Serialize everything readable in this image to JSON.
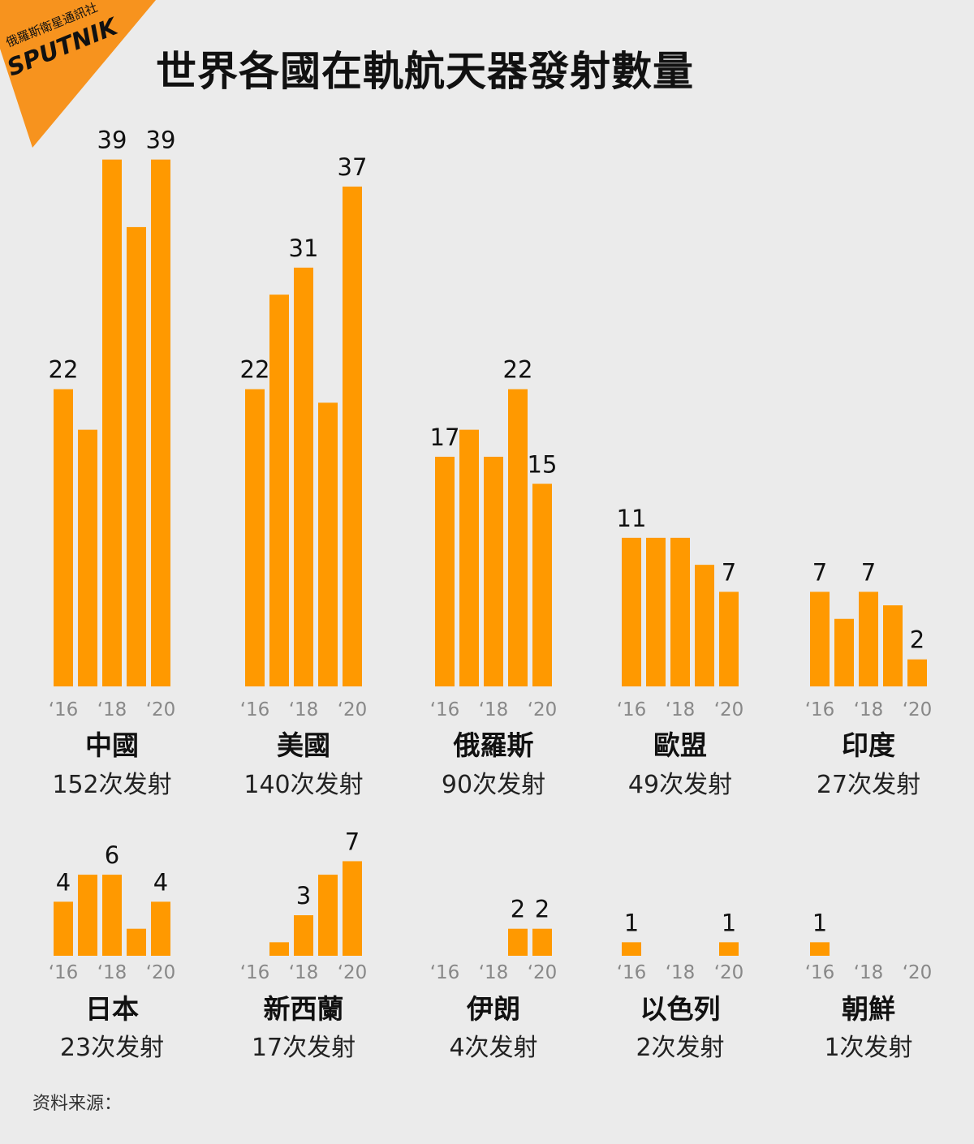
{
  "title": "世界各國在軌航天器發射數量",
  "source_label": "资料来源：",
  "logo": {
    "agency": "俄羅斯衛星通訊社",
    "brand": "SPUTNIK",
    "color": "#f7931e"
  },
  "colors": {
    "bar": "#ff9900",
    "axis_text": "#888888",
    "value_text": "#111111"
  },
  "chart_data": {
    "type": "bar",
    "categories": [
      "2016",
      "2017",
      "2018",
      "2019",
      "2020"
    ],
    "tick_labels": [
      "‘16",
      "‘18",
      "‘20"
    ],
    "countries": [
      {
        "name": "中國",
        "total": "152次发射",
        "values": [
          22,
          19,
          39,
          34,
          39
        ],
        "labels": [
          "22",
          "",
          "39",
          "",
          "39"
        ]
      },
      {
        "name": "美國",
        "total": "140次发射",
        "values": [
          22,
          29,
          31,
          21,
          37
        ],
        "labels": [
          "22",
          "",
          "31",
          "",
          "37"
        ]
      },
      {
        "name": "俄羅斯",
        "total": "90次发射",
        "values": [
          17,
          19,
          17,
          22,
          15
        ],
        "labels": [
          "17",
          "",
          "",
          "22",
          "15"
        ]
      },
      {
        "name": "歐盟",
        "total": "49次发射",
        "values": [
          11,
          11,
          11,
          9,
          7
        ],
        "labels": [
          "11",
          "",
          "",
          "",
          "7"
        ]
      },
      {
        "name": "印度",
        "total": "27次发射",
        "values": [
          7,
          5,
          7,
          6,
          2
        ],
        "labels": [
          "7",
          "",
          "7",
          "",
          "2"
        ]
      },
      {
        "name": "日本",
        "total": "23次发射",
        "values": [
          4,
          6,
          6,
          2,
          4
        ],
        "labels": [
          "4",
          "",
          "6",
          "",
          "4"
        ]
      },
      {
        "name": "新西蘭",
        "total": "17次发射",
        "values": [
          0,
          1,
          3,
          6,
          7
        ],
        "labels": [
          "",
          "",
          "3",
          "",
          "7"
        ]
      },
      {
        "name": "伊朗",
        "total": "4次发射",
        "values": [
          0,
          0,
          0,
          2,
          2
        ],
        "labels": [
          "",
          "",
          "",
          "2",
          "2"
        ]
      },
      {
        "name": "以色列",
        "total": "2次发射",
        "values": [
          1,
          0,
          0,
          0,
          1
        ],
        "labels": [
          "1",
          "",
          "",
          "",
          "1"
        ]
      },
      {
        "name": "朝鮮",
        "total": "1次发射",
        "values": [
          1,
          0,
          0,
          0,
          0
        ],
        "labels": [
          "1",
          "",
          "",
          "",
          ""
        ]
      }
    ]
  }
}
